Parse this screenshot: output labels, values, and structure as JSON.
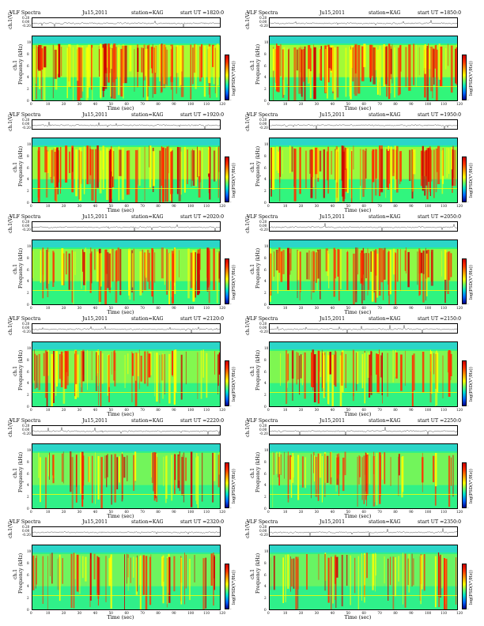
{
  "colors": {
    "background": "#2bd6c8",
    "low": "#33ff66",
    "mid": "#ffff00",
    "high": "#ff3300",
    "peak": "#cc0000"
  },
  "labels": {
    "title": "VLF Spectra",
    "date": "Ju15,2011",
    "station": "station=KAG",
    "start_prefix": "start UT =",
    "ts_ylabel": "ch.1(V)",
    "spec_ylabel_top": "ch.1",
    "spec_ylabel": "Frequency (kHz)",
    "xlabel": "Time (sec)",
    "cbar_label": "log(PSD(V²/Hz))",
    "cbar_tick": "-"
  },
  "chart_data": [
    {
      "type": "heatmap",
      "title": "VLF Spectra",
      "date": "Ju15,2011",
      "station": "station=KAG",
      "start_ut": "1820:0",
      "xlabel": "Time (sec)",
      "ylabel": "Frequency (kHz)",
      "ts_ylabel": "ch.1(V)",
      "xlim": [
        0,
        120
      ],
      "ylim": [
        0,
        10
      ],
      "ts_ylim": [
        -0.2,
        0.2
      ],
      "x_ticks": [
        "0",
        "10",
        "20",
        "30",
        "40",
        "50",
        "60",
        "70",
        "80",
        "90",
        "100",
        "110",
        "120"
      ],
      "y_ticks": [
        "0",
        "2",
        "4",
        "6",
        "8",
        "10"
      ],
      "ts_ticks": [
        "0.20",
        "0.00",
        "-0.20"
      ],
      "colorbar_label": "log(PSD(V²/Hz))",
      "activity": 0.85
    },
    {
      "type": "heatmap",
      "title": "VLF Spectra",
      "date": "Ju15,2011",
      "station": "station=KAG",
      "start_ut": "1850:0",
      "xlabel": "Time (sec)",
      "ylabel": "Frequency (kHz)",
      "ts_ylabel": "ch.1(V)",
      "xlim": [
        0,
        120
      ],
      "ylim": [
        0,
        10
      ],
      "ts_ylim": [
        -0.2,
        0.2
      ],
      "x_ticks": [
        "0",
        "10",
        "20",
        "30",
        "40",
        "50",
        "60",
        "70",
        "80",
        "90",
        "100",
        "110",
        "120"
      ],
      "y_ticks": [
        "0",
        "2",
        "4",
        "6",
        "8",
        "10"
      ],
      "ts_ticks": [
        "0.20",
        "0.00",
        "-0.20"
      ],
      "colorbar_label": "log(PSD(V²/Hz))",
      "activity": 0.8
    },
    {
      "type": "heatmap",
      "title": "VLF Spectra",
      "date": "Ju15,2011",
      "station": "station=KAG",
      "start_ut": "1920:0",
      "xlabel": "Time (sec)",
      "ylabel": "Frequency (kHz)",
      "ts_ylabel": "ch.1(V)",
      "xlim": [
        0,
        120
      ],
      "ylim": [
        0,
        10
      ],
      "ts_ylim": [
        -0.2,
        0.2
      ],
      "x_ticks": [
        "0",
        "10",
        "20",
        "30",
        "40",
        "50",
        "60",
        "70",
        "80",
        "90",
        "100",
        "110",
        "120"
      ],
      "y_ticks": [
        "0",
        "2",
        "4",
        "6",
        "8",
        "10"
      ],
      "ts_ticks": [
        "0.20",
        "0.00",
        "-0.20"
      ],
      "colorbar_label": "log(PSD(V²/Hz))",
      "activity": 0.7
    },
    {
      "type": "heatmap",
      "title": "VLF Spectra",
      "date": "Ju15,2011",
      "station": "station=KAG",
      "start_ut": "1950:0",
      "xlabel": "Time (sec)",
      "ylabel": "Frequency (kHz)",
      "ts_ylabel": "ch.1(V)",
      "xlim": [
        0,
        120
      ],
      "ylim": [
        0,
        10
      ],
      "ts_ylim": [
        -0.2,
        0.2
      ],
      "x_ticks": [
        "0",
        "10",
        "20",
        "30",
        "40",
        "50",
        "60",
        "70",
        "80",
        "90",
        "100",
        "110",
        "120"
      ],
      "y_ticks": [
        "0",
        "2",
        "4",
        "6",
        "8",
        "10"
      ],
      "ts_ticks": [
        "0.20",
        "0.00",
        "-0.20"
      ],
      "colorbar_label": "log(PSD(V²/Hz))",
      "activity": 0.7
    },
    {
      "type": "heatmap",
      "title": "VLF Spectra",
      "date": "Ju15,2011",
      "station": "station=KAG",
      "start_ut": "2020:0",
      "xlabel": "Time (sec)",
      "ylabel": "Frequency (kHz)",
      "ts_ylabel": "ch.1(V)",
      "xlim": [
        0,
        120
      ],
      "ylim": [
        0,
        10
      ],
      "ts_ylim": [
        -0.2,
        0.2
      ],
      "x_ticks": [
        "0",
        "10",
        "20",
        "30",
        "40",
        "50",
        "60",
        "70",
        "80",
        "90",
        "100",
        "110",
        "120"
      ],
      "y_ticks": [
        "0",
        "2",
        "4",
        "6",
        "8",
        "10"
      ],
      "ts_ticks": [
        "0.20",
        "0.00",
        "-0.20"
      ],
      "colorbar_label": "log(PSD(V²/Hz))",
      "activity": 0.6
    },
    {
      "type": "heatmap",
      "title": "VLF Spectra",
      "date": "Ju15,2011",
      "station": "station=KAG",
      "start_ut": "2050:0",
      "xlabel": "Time (sec)",
      "ylabel": "Frequency (kHz)",
      "ts_ylabel": "ch.1(V)",
      "xlim": [
        0,
        120
      ],
      "ylim": [
        0,
        10
      ],
      "ts_ylim": [
        -0.2,
        0.2
      ],
      "x_ticks": [
        "0",
        "10",
        "20",
        "30",
        "40",
        "50",
        "60",
        "70",
        "80",
        "90",
        "100",
        "110",
        "120"
      ],
      "y_ticks": [
        "0",
        "2",
        "4",
        "6",
        "8",
        "10"
      ],
      "ts_ticks": [
        "0.20",
        "0.00",
        "-0.20"
      ],
      "colorbar_label": "log(PSD(V²/Hz))",
      "activity": 0.6
    },
    {
      "type": "heatmap",
      "title": "VLF Spectra",
      "date": "Ju15,2011",
      "station": "station=KAG",
      "start_ut": "2120:0",
      "xlabel": "Time (sec)",
      "ylabel": "Frequency (kHz)",
      "ts_ylabel": "ch.1(V)",
      "xlim": [
        0,
        120
      ],
      "ylim": [
        0,
        10
      ],
      "ts_ylim": [
        -0.2,
        0.2
      ],
      "x_ticks": [
        "0",
        "10",
        "20",
        "30",
        "40",
        "50",
        "60",
        "70",
        "80",
        "90",
        "100",
        "110",
        "120"
      ],
      "y_ticks": [
        "0",
        "2",
        "4",
        "6",
        "8",
        "10"
      ],
      "ts_ticks": [
        "0.20",
        "0.00",
        "-0.20"
      ],
      "colorbar_label": "log(PSD(V²/Hz))",
      "activity": 0.5
    },
    {
      "type": "heatmap",
      "title": "VLF Spectra",
      "date": "Ju15,2011",
      "station": "station=KAG",
      "start_ut": "2150:0",
      "xlabel": "Time (sec)",
      "ylabel": "Frequency (kHz)",
      "ts_ylabel": "ch.1(V)",
      "xlim": [
        0,
        120
      ],
      "ylim": [
        0,
        10
      ],
      "ts_ylim": [
        -0.2,
        0.2
      ],
      "x_ticks": [
        "0",
        "10",
        "20",
        "30",
        "40",
        "50",
        "60",
        "70",
        "80",
        "90",
        "100",
        "110",
        "120"
      ],
      "y_ticks": [
        "0",
        "2",
        "4",
        "6",
        "8",
        "10"
      ],
      "ts_ticks": [
        "0.20",
        "0.00",
        "-0.20"
      ],
      "colorbar_label": "log(PSD(V²/Hz))",
      "activity": 0.45
    },
    {
      "type": "heatmap",
      "title": "VLF Spectra",
      "date": "Ju15,2011",
      "station": "station=KAG",
      "start_ut": "2220:0",
      "xlabel": "Time (sec)",
      "ylabel": "Frequency (kHz)",
      "ts_ylabel": "ch.1(V)",
      "xlim": [
        0,
        120
      ],
      "ylim": [
        0,
        10
      ],
      "ts_ylim": [
        -0.2,
        0.2
      ],
      "x_ticks": [
        "0",
        "10",
        "20",
        "30",
        "40",
        "50",
        "60",
        "70",
        "80",
        "90",
        "100",
        "110",
        "120"
      ],
      "y_ticks": [
        "0",
        "2",
        "4",
        "6",
        "8",
        "10"
      ],
      "ts_ticks": [
        "0.20",
        "0.00",
        "-0.20"
      ],
      "colorbar_label": "log(PSD(V²/Hz))",
      "activity": 0.35
    },
    {
      "type": "heatmap",
      "title": "VLF Spectra",
      "date": "Ju15,2011",
      "station": "station=KAG",
      "start_ut": "2250:0",
      "xlabel": "Time (sec)",
      "ylabel": "Frequency (kHz)",
      "ts_ylabel": "ch.1(V)",
      "xlim": [
        0,
        120
      ],
      "ylim": [
        0,
        10
      ],
      "ts_ylim": [
        -0.2,
        0.2
      ],
      "x_ticks": [
        "0",
        "10",
        "20",
        "30",
        "40",
        "50",
        "60",
        "70",
        "80",
        "90",
        "100",
        "110",
        "120"
      ],
      "y_ticks": [
        "0",
        "2",
        "4",
        "6",
        "8",
        "10"
      ],
      "ts_ticks": [
        "0.20",
        "0.00",
        "-0.20"
      ],
      "colorbar_label": "log(PSD(V²/Hz))",
      "activity": 0.35
    },
    {
      "type": "heatmap",
      "title": "VLF Spectra",
      "date": "Ju15,2011",
      "station": "station=KAG",
      "start_ut": "2320:0",
      "xlabel": "Time (sec)",
      "ylabel": "Frequency (kHz)",
      "ts_ylabel": "ch.1(V)",
      "xlim": [
        0,
        120
      ],
      "ylim": [
        0,
        10
      ],
      "ts_ylim": [
        -0.2,
        0.2
      ],
      "x_ticks": [
        "0",
        "10",
        "20",
        "30",
        "40",
        "50",
        "60",
        "70",
        "80",
        "90",
        "100",
        "110",
        "120"
      ],
      "y_ticks": [
        "0",
        "2",
        "4",
        "6",
        "8",
        "10"
      ],
      "ts_ticks": [
        "0.20",
        "0.00",
        "-0.20"
      ],
      "colorbar_label": "log(PSD(V²/Hz))",
      "activity": 0.3
    },
    {
      "type": "heatmap",
      "title": "VLF Spectra",
      "date": "Ju15,2011",
      "station": "station=KAG",
      "start_ut": "2350:0",
      "xlabel": "Time (sec)",
      "ylabel": "Frequency (kHz)",
      "ts_ylabel": "ch.1(V)",
      "xlim": [
        0,
        120
      ],
      "ylim": [
        0,
        10
      ],
      "ts_ylim": [
        -0.2,
        0.2
      ],
      "x_ticks": [
        "0",
        "10",
        "20",
        "30",
        "40",
        "50",
        "60",
        "70",
        "80",
        "90",
        "100",
        "110",
        "120"
      ],
      "y_ticks": [
        "0",
        "2",
        "4",
        "6",
        "8",
        "10"
      ],
      "ts_ticks": [
        "0.20",
        "0.00",
        "-0.20"
      ],
      "colorbar_label": "log(PSD(V²/Hz))",
      "activity": 0.25
    }
  ]
}
